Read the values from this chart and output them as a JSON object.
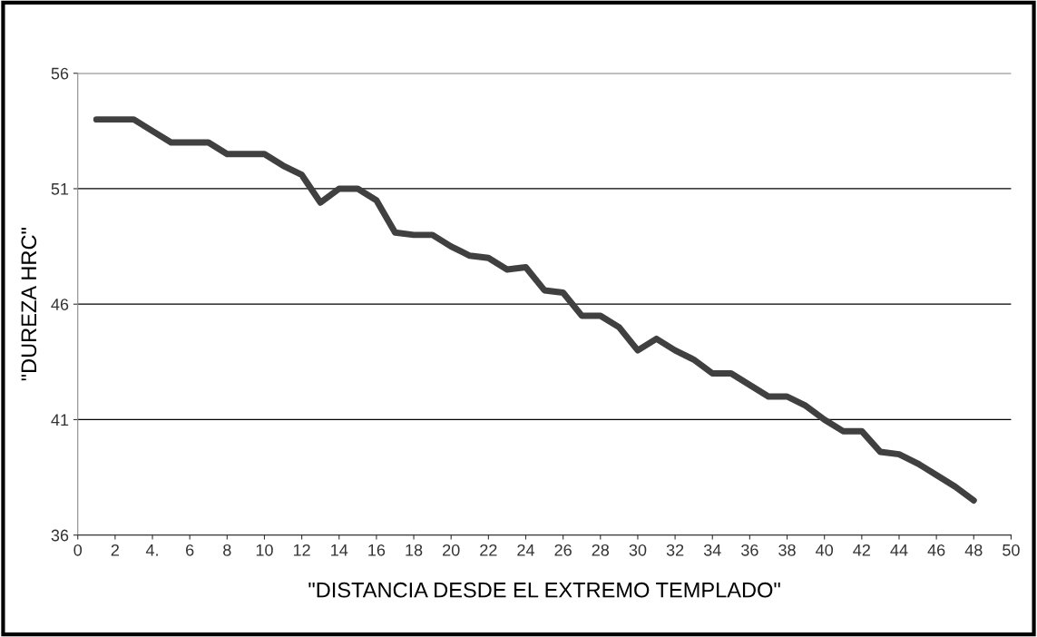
{
  "chart_data": {
    "type": "line",
    "xlabel": "\"DISTANCIA DESDE EL EXTREMO TEMPLADO\"",
    "ylabel": "\"DUREZA HRC\"",
    "x": [
      1,
      2,
      3,
      4,
      5,
      6,
      7,
      8,
      9,
      10,
      11,
      12,
      13,
      14,
      15,
      16,
      17,
      18,
      19,
      20,
      21,
      22,
      23,
      24,
      25,
      26,
      27,
      28,
      29,
      30,
      31,
      32,
      33,
      34,
      35,
      36,
      37,
      38,
      39,
      40,
      41,
      42,
      43,
      44,
      45,
      46,
      47,
      48
    ],
    "series": [
      {
        "color": "#404040",
        "values": [
          54,
          54,
          54,
          53.5,
          53,
          53,
          53,
          52.5,
          52.5,
          52.5,
          52,
          51.6,
          50.4,
          51,
          51,
          50.5,
          49.1,
          49,
          49,
          48.5,
          48.1,
          48,
          47.5,
          47.6,
          46.6,
          46.5,
          45.5,
          45.5,
          45,
          44,
          44.5,
          44,
          43.6,
          43,
          43,
          42.5,
          42,
          42,
          41.6,
          41,
          40.5,
          40.5,
          39.6,
          39.5,
          39.1,
          38.6,
          38.1,
          37.5
        ]
      }
    ],
    "xlim": [
      0,
      50
    ],
    "xticks": [
      0,
      2,
      {
        "value": 4,
        "label": "4."
      },
      6,
      8,
      10,
      12,
      14,
      16,
      18,
      20,
      22,
      24,
      26,
      28,
      30,
      32,
      34,
      36,
      38,
      40,
      42,
      44,
      46,
      48,
      50
    ],
    "ylim": [
      36,
      56
    ],
    "yticks": [
      36,
      41,
      46,
      51,
      56
    ],
    "grid": "y",
    "legend": false,
    "marker": "none",
    "line_style": "solid"
  }
}
